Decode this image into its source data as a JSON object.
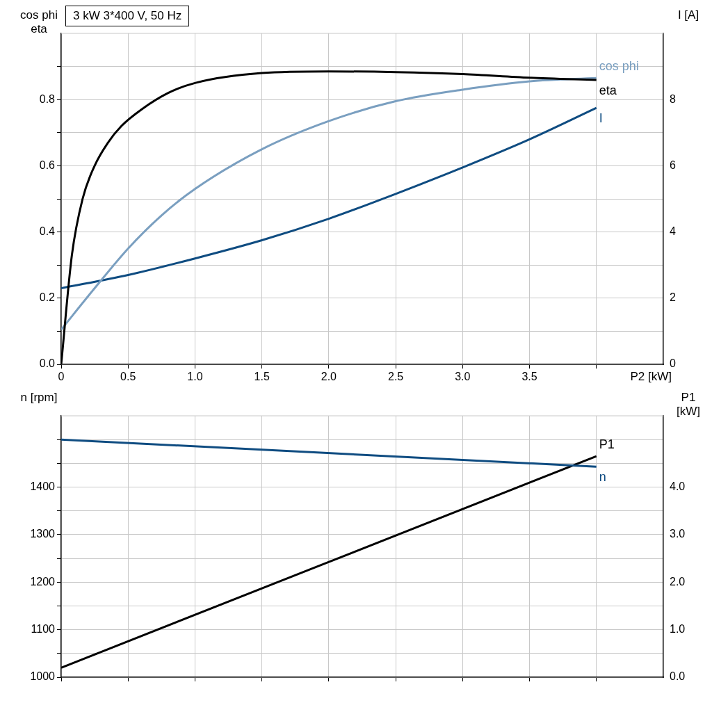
{
  "chart_data": [
    {
      "type": "line",
      "title": "3 kW   3*400 V, 50 Hz",
      "xlabel": "P2 [kW]",
      "ylabel": "cos phi eta",
      "y2label": "I [A]",
      "xlim": [
        0,
        4.5
      ],
      "xticks": [
        0,
        0.5,
        {
          "value": 1,
          "label": "1.0"
        },
        1.5,
        {
          "value": 2,
          "label": "2.0"
        },
        2.5,
        {
          "value": 3,
          "label": "3.0"
        },
        3.5,
        {
          "value": 4,
          "label": null
        }
      ],
      "ylim": [
        0,
        1.0
      ],
      "yticks": [
        {
          "value": 0,
          "label": "0.0"
        },
        {
          "value": 0.1,
          "label": null
        },
        0.2,
        {
          "value": 0.3,
          "label": null
        },
        0.4,
        {
          "value": 0.5,
          "label": null
        },
        0.6,
        {
          "value": 0.7,
          "label": null
        },
        0.8,
        {
          "value": 0.9,
          "label": null
        }
      ],
      "y2lim": [
        0,
        10
      ],
      "y2ticks": [
        0,
        2,
        4,
        6,
        8
      ],
      "grid": true,
      "legend": false,
      "marker": "none",
      "line_style": "solid",
      "series": [
        {
          "name": "eta",
          "color": "#000000",
          "x": [
            0,
            0.08,
            0.16,
            0.25,
            0.35,
            0.45,
            0.6,
            0.8,
            1.0,
            1.5,
            2.0,
            2.5,
            3.0,
            3.5,
            4.0
          ],
          "values": [
            0,
            0.33,
            0.5,
            0.6,
            0.67,
            0.72,
            0.77,
            0.82,
            0.85,
            0.88,
            0.885,
            0.883,
            0.877,
            0.866,
            0.859
          ]
        },
        {
          "name": "cos phi",
          "color": "#7a9fc0",
          "x": [
            0,
            0.25,
            0.5,
            0.75,
            1.0,
            1.5,
            2.0,
            2.5,
            3.0,
            3.5,
            4.0
          ],
          "values": [
            0.105,
            0.23,
            0.35,
            0.45,
            0.53,
            0.65,
            0.735,
            0.795,
            0.83,
            0.855,
            0.865
          ]
        },
        {
          "name": "I",
          "color": "#0f4c81",
          "axis": "y2",
          "x": [
            0,
            0.5,
            1.0,
            1.5,
            2.0,
            2.5,
            3.0,
            3.5,
            4.0
          ],
          "values": [
            2.3,
            2.7,
            3.2,
            3.75,
            4.4,
            5.15,
            5.95,
            6.8,
            7.75
          ]
        }
      ]
    },
    {
      "type": "line",
      "ylabel": "n [rpm]",
      "y2label": "P1 [kW]",
      "xlim": [
        0,
        4.5
      ],
      "xticks": [
        0,
        0.5,
        1.0,
        1.5,
        2.0,
        2.5,
        3.0,
        3.5,
        4.0
      ],
      "ylim": [
        1000,
        1550
      ],
      "yticks": [
        1000,
        {
          "value": 1050,
          "label": null
        },
        1100,
        {
          "value": 1150,
          "label": null
        },
        1200,
        {
          "value": 1250,
          "label": null
        },
        1300,
        {
          "value": 1350,
          "label": null
        },
        1400,
        {
          "value": 1450,
          "label": null
        },
        {
          "value": 1500,
          "label": null
        }
      ],
      "y2lim": [
        0,
        5.5
      ],
      "y2ticks": [
        {
          "value": 0,
          "label": "0.0"
        },
        {
          "value": 1,
          "label": "1.0"
        },
        {
          "value": 2,
          "label": "2.0"
        },
        {
          "value": 3,
          "label": "3.0"
        },
        {
          "value": 4,
          "label": "4.0"
        }
      ],
      "grid": true,
      "legend": false,
      "marker": "none",
      "line_style": "solid",
      "tick_labels": "y",
      "series": [
        {
          "name": "n",
          "color": "#0f4c81",
          "x": [
            0,
            4.0
          ],
          "values": [
            1500,
            1443
          ]
        },
        {
          "name": "P1",
          "color": "#000000",
          "axis": "y2",
          "x": [
            0,
            4.0
          ],
          "values": [
            0.2,
            4.65
          ]
        }
      ]
    }
  ]
}
